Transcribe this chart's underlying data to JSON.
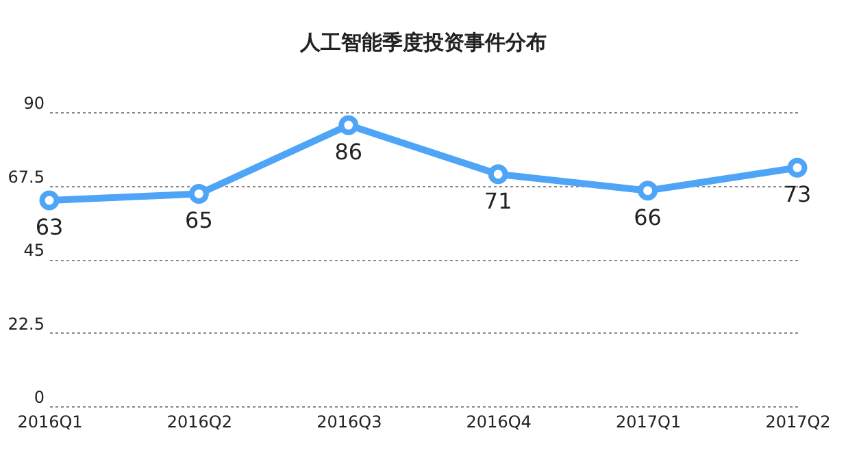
{
  "chart_data": {
    "type": "line",
    "title": "人工智能季度投资事件分布",
    "categories": [
      "2016Q1",
      "2016Q2",
      "2016Q3",
      "2016Q4",
      "2017Q1",
      "2017Q2"
    ],
    "series": [
      {
        "color": "#4ea5f7",
        "values": [
          63,
          65,
          86,
          71,
          66,
          73
        ]
      }
    ],
    "ylim": [
      0,
      90
    ],
    "yticks": [
      0,
      22.5,
      45,
      67.5,
      90
    ],
    "grid": "y",
    "marker": "circle",
    "line_style": "solid",
    "data_labels": true
  }
}
